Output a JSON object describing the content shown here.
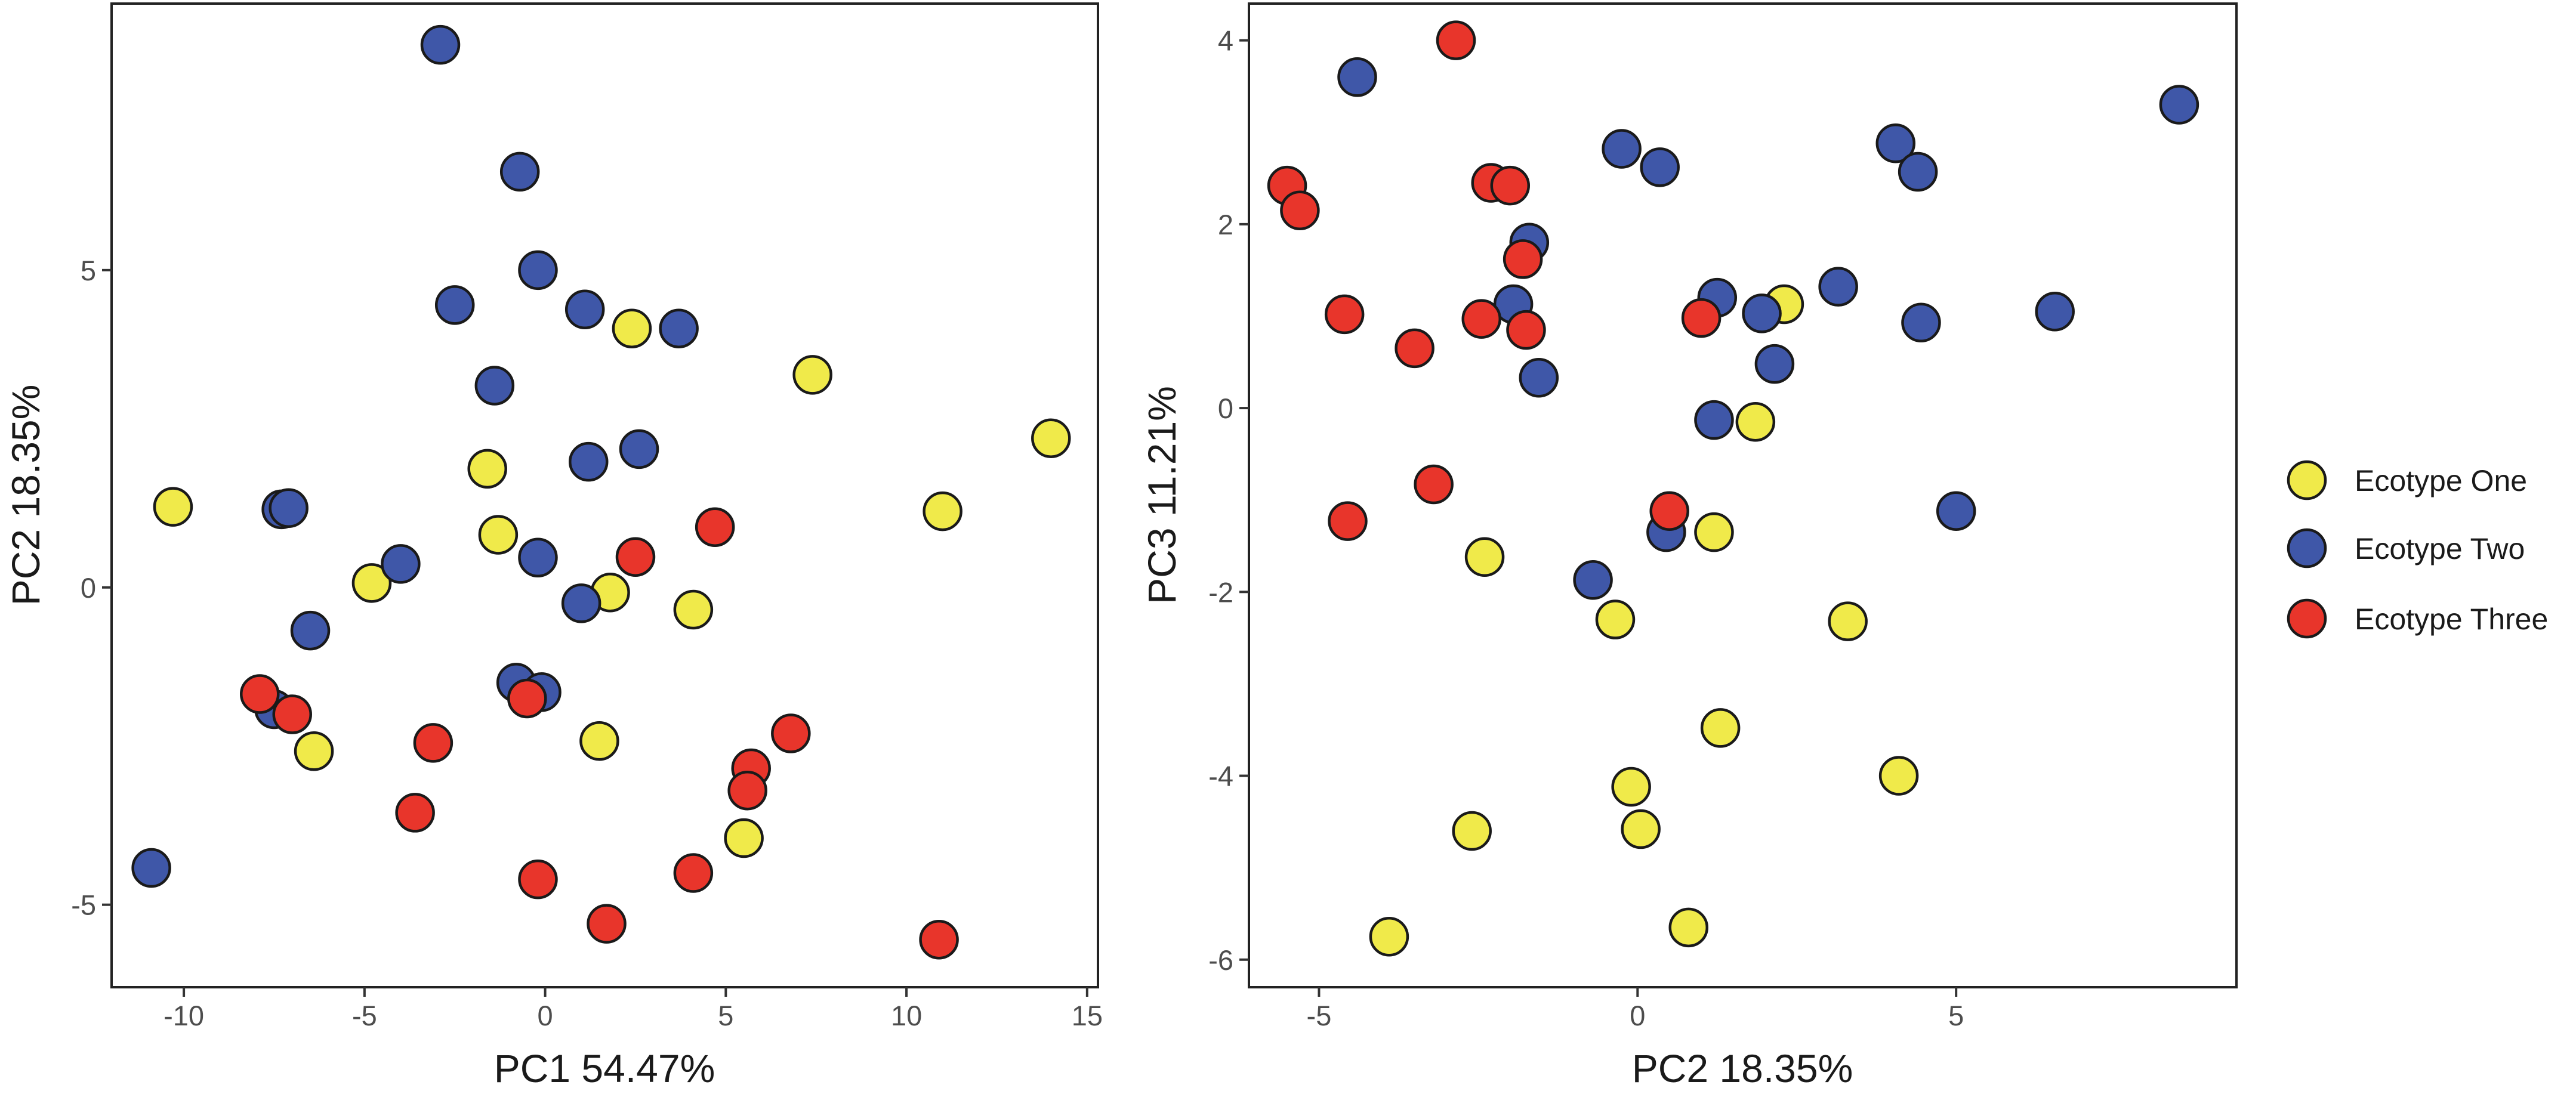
{
  "series_colors": {
    "Ecotype One": "#f0ea4a",
    "Ecotype Two": "#3f57a8",
    "Ecotype Three": "#e8352b"
  },
  "legend": {
    "items": [
      {
        "label": "Ecotype One",
        "color": "#f0ea4a"
      },
      {
        "label": "Ecotype Two",
        "color": "#3f57a8"
      },
      {
        "label": "Ecotype Three",
        "color": "#e8352b"
      }
    ]
  },
  "chart_data": [
    {
      "type": "scatter",
      "title": "",
      "xlabel": "PC1 54.47%",
      "ylabel": "PC2 18.35%",
      "xlim": [
        -12,
        15.3
      ],
      "ylim": [
        -6.3,
        9.2
      ],
      "xticks": [
        -10,
        -5,
        0,
        5,
        10,
        15
      ],
      "yticks": [
        -5,
        0,
        5
      ],
      "xtick_labels": [
        "-10",
        "-5",
        "0",
        "5",
        "10",
        "15"
      ],
      "ytick_labels": [
        "-5",
        "0",
        "5"
      ],
      "series": [
        {
          "name": "Ecotype One",
          "points": [
            {
              "x": -10.3,
              "y": 1.27
            },
            {
              "x": -4.8,
              "y": 0.07
            },
            {
              "x": -6.4,
              "y": -2.58
            },
            {
              "x": -1.6,
              "y": 1.87
            },
            {
              "x": -1.3,
              "y": 0.83
            },
            {
              "x": 2.4,
              "y": 4.08
            },
            {
              "x": 1.8,
              "y": -0.08
            },
            {
              "x": 4.1,
              "y": -0.35
            },
            {
              "x": 1.5,
              "y": -2.42
            },
            {
              "x": 5.5,
              "y": -3.95
            },
            {
              "x": 7.4,
              "y": 3.35
            },
            {
              "x": 11.0,
              "y": 1.2
            },
            {
              "x": 14.0,
              "y": 2.35
            }
          ]
        },
        {
          "name": "Ecotype Two",
          "points": [
            {
              "x": -2.9,
              "y": 8.55
            },
            {
              "x": -0.7,
              "y": 6.55
            },
            {
              "x": -0.2,
              "y": 5.0
            },
            {
              "x": -2.5,
              "y": 4.45
            },
            {
              "x": 1.1,
              "y": 4.38
            },
            {
              "x": 3.7,
              "y": 4.08
            },
            {
              "x": -1.4,
              "y": 3.18
            },
            {
              "x": 1.2,
              "y": 1.98
            },
            {
              "x": 2.6,
              "y": 2.18
            },
            {
              "x": -7.3,
              "y": 1.23
            },
            {
              "x": -7.1,
              "y": 1.25
            },
            {
              "x": -4.0,
              "y": 0.37
            },
            {
              "x": -0.2,
              "y": 0.47
            },
            {
              "x": 1.0,
              "y": -0.25
            },
            {
              "x": -6.5,
              "y": -0.68
            },
            {
              "x": -0.8,
              "y": -1.5
            },
            {
              "x": -0.1,
              "y": -1.65
            },
            {
              "x": -7.5,
              "y": -1.92
            },
            {
              "x": -10.9,
              "y": -4.42
            }
          ]
        },
        {
          "name": "Ecotype Three",
          "points": [
            {
              "x": -7.9,
              "y": -1.68
            },
            {
              "x": -7.0,
              "y": -2.0
            },
            {
              "x": -3.1,
              "y": -2.45
            },
            {
              "x": -3.6,
              "y": -3.55
            },
            {
              "x": -0.5,
              "y": -1.75
            },
            {
              "x": 2.5,
              "y": 0.48
            },
            {
              "x": 4.7,
              "y": 0.95
            },
            {
              "x": 6.8,
              "y": -2.3
            },
            {
              "x": 5.7,
              "y": -2.85
            },
            {
              "x": 5.6,
              "y": -3.2
            },
            {
              "x": 4.1,
              "y": -4.5
            },
            {
              "x": -0.2,
              "y": -4.6
            },
            {
              "x": 1.7,
              "y": -5.3
            },
            {
              "x": 10.9,
              "y": -5.55
            }
          ]
        }
      ]
    },
    {
      "type": "scatter",
      "title": "",
      "xlabel": "PC2 18.35%",
      "ylabel": "PC3 11.21%",
      "xlim": [
        -6.1,
        9.4
      ],
      "ylim": [
        -6.3,
        4.4
      ],
      "xticks": [
        -5,
        0,
        5
      ],
      "yticks": [
        -6,
        -4,
        -2,
        0,
        2,
        4
      ],
      "xtick_labels": [
        "-5",
        "0",
        "5"
      ],
      "ytick_labels": [
        "-6",
        "-4",
        "-2",
        "0",
        "2",
        "4"
      ],
      "series": [
        {
          "name": "Ecotype One",
          "points": [
            {
              "x": 2.3,
              "y": 1.13
            },
            {
              "x": 1.85,
              "y": -0.15
            },
            {
              "x": 1.2,
              "y": -1.35
            },
            {
              "x": -2.4,
              "y": -1.62
            },
            {
              "x": -0.35,
              "y": -2.3
            },
            {
              "x": 3.3,
              "y": -2.32
            },
            {
              "x": 1.3,
              "y": -3.48
            },
            {
              "x": 4.1,
              "y": -4.0
            },
            {
              "x": -0.1,
              "y": -4.12
            },
            {
              "x": 0.05,
              "y": -4.58
            },
            {
              "x": -2.6,
              "y": -4.6
            },
            {
              "x": 0.8,
              "y": -5.65
            },
            {
              "x": -3.9,
              "y": -5.75
            }
          ]
        },
        {
          "name": "Ecotype Two",
          "points": [
            {
              "x": -4.4,
              "y": 3.6
            },
            {
              "x": -0.25,
              "y": 2.82
            },
            {
              "x": 0.35,
              "y": 2.62
            },
            {
              "x": 4.05,
              "y": 2.88
            },
            {
              "x": 4.4,
              "y": 2.57
            },
            {
              "x": 8.5,
              "y": 3.3
            },
            {
              "x": -1.7,
              "y": 1.8
            },
            {
              "x": -1.95,
              "y": 1.13
            },
            {
              "x": 1.25,
              "y": 1.2
            },
            {
              "x": 1.95,
              "y": 1.03
            },
            {
              "x": 3.15,
              "y": 1.32
            },
            {
              "x": 4.45,
              "y": 0.93
            },
            {
              "x": 6.55,
              "y": 1.05
            },
            {
              "x": 2.15,
              "y": 0.48
            },
            {
              "x": -1.55,
              "y": 0.33
            },
            {
              "x": 1.2,
              "y": -0.13
            },
            {
              "x": 5.0,
              "y": -1.12
            },
            {
              "x": 0.45,
              "y": -1.35
            },
            {
              "x": -0.7,
              "y": -1.87
            }
          ]
        },
        {
          "name": "Ecotype Three",
          "points": [
            {
              "x": -2.85,
              "y": 4.0
            },
            {
              "x": -5.5,
              "y": 2.42
            },
            {
              "x": -5.3,
              "y": 2.15
            },
            {
              "x": -2.3,
              "y": 2.45
            },
            {
              "x": -2.0,
              "y": 2.42
            },
            {
              "x": -1.8,
              "y": 1.62
            },
            {
              "x": -4.6,
              "y": 1.02
            },
            {
              "x": -2.45,
              "y": 0.97
            },
            {
              "x": -1.75,
              "y": 0.85
            },
            {
              "x": -3.5,
              "y": 0.65
            },
            {
              "x": 1.0,
              "y": 0.98
            },
            {
              "x": -3.2,
              "y": -0.83
            },
            {
              "x": -4.55,
              "y": -1.23
            },
            {
              "x": 0.5,
              "y": -1.12
            }
          ]
        }
      ]
    }
  ]
}
